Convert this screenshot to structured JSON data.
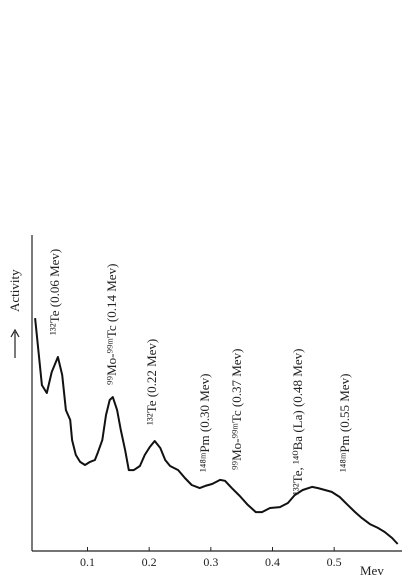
{
  "chart_data": {
    "type": "line",
    "x_label": "Mev",
    "y_label": "Activity",
    "x": [
      0.015,
      0.026,
      0.034,
      0.042,
      0.052,
      0.059,
      0.065,
      0.072,
      0.075,
      0.081,
      0.088,
      0.096,
      0.104,
      0.112,
      0.117,
      0.124,
      0.13,
      0.136,
      0.141,
      0.148,
      0.154,
      0.161,
      0.167,
      0.175,
      0.185,
      0.193,
      0.201,
      0.209,
      0.218,
      0.226,
      0.234,
      0.247,
      0.258,
      0.269,
      0.282,
      0.291,
      0.302,
      0.315,
      0.323,
      0.334,
      0.347,
      0.36,
      0.373,
      0.383,
      0.396,
      0.412,
      0.425,
      0.436,
      0.449,
      0.464,
      0.474,
      0.485,
      0.496,
      0.509,
      0.522,
      0.534,
      0.545,
      0.558,
      0.571,
      0.582,
      0.594,
      0.603
    ],
    "series": [
      {
        "color": "#111",
        "values": [
          0.737,
          0.525,
          0.5,
          0.566,
          0.614,
          0.557,
          0.446,
          0.415,
          0.351,
          0.304,
          0.282,
          0.272,
          0.282,
          0.288,
          0.313,
          0.351,
          0.43,
          0.478,
          0.487,
          0.446,
          0.383,
          0.32,
          0.256,
          0.256,
          0.269,
          0.304,
          0.329,
          0.348,
          0.326,
          0.288,
          0.269,
          0.256,
          0.231,
          0.209,
          0.199,
          0.206,
          0.212,
          0.225,
          0.222,
          0.199,
          0.174,
          0.146,
          0.123,
          0.123,
          0.136,
          0.139,
          0.152,
          0.177,
          0.193,
          0.203,
          0.199,
          0.193,
          0.187,
          0.171,
          0.146,
          0.123,
          0.104,
          0.085,
          0.073,
          0.06,
          0.041,
          0.022
        ]
      }
    ],
    "xlim": [
      0.01,
      0.61
    ],
    "ylim": [
      0,
      1
    ],
    "xticks": [
      0.1,
      0.2,
      0.3,
      0.4,
      0.5
    ],
    "annotations": [
      "¹³²Te (0.06 Mev)",
      "⁹⁹Mo-⁹⁹ᵐTc (0.14 Mev)",
      "¹³²Te (0.22 Mev)",
      "¹⁴⁸ᵐPm (0.30 Mev)",
      "⁹⁹Mo-⁹⁹ᵐTc (0.37 Mev)",
      "¹³²Te, ¹⁴⁰Ba (La) (0.48 Mev)",
      "¹⁴⁸ᵐPm (0.55 Mev)"
    ]
  }
}
